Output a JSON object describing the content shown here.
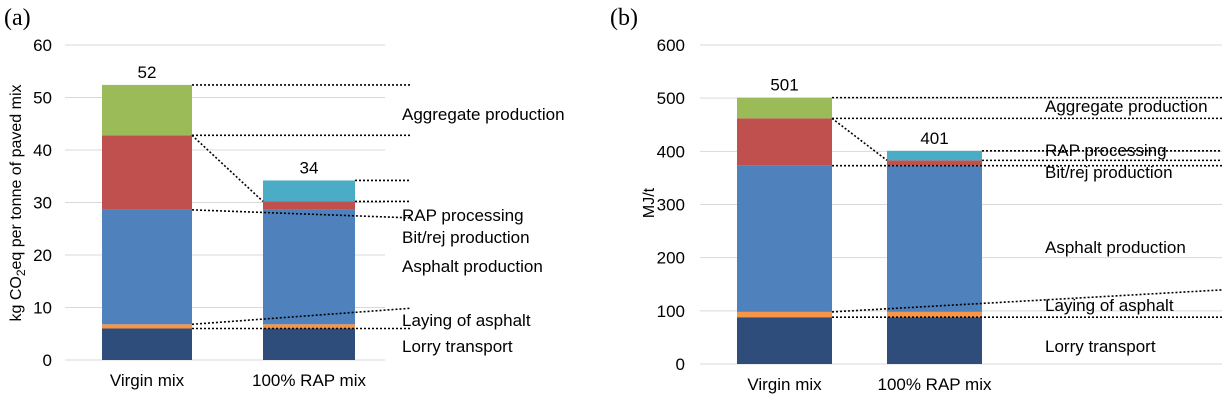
{
  "chart_data": [
    {
      "panel": "(a)",
      "type": "bar",
      "stacked": true,
      "ylabel": "kg CO2eq per tonne of paved mix",
      "ylim": [
        0,
        60
      ],
      "yticks": [
        0,
        10,
        20,
        30,
        40,
        50,
        60
      ],
      "grid": true,
      "categories": [
        "Virgin mix",
        "100% RAP mix"
      ],
      "totals": [
        "52",
        "34"
      ],
      "series": [
        {
          "name": "Lorry transport",
          "color": "#2e4d7a",
          "values": [
            6.0,
            6.0
          ]
        },
        {
          "name": "Laying of asphalt",
          "color": "#f79646",
          "values": [
            0.8,
            0.8
          ]
        },
        {
          "name": "Asphalt production",
          "color": "#4f81bd",
          "values": [
            21.8,
            21.8
          ]
        },
        {
          "name": "Bit/rej production",
          "color": "#c0504d",
          "values": [
            14.2,
            1.6
          ]
        },
        {
          "name": "RAP processing",
          "color": "#4bacc6",
          "values": [
            0,
            4.0
          ]
        },
        {
          "name": "Aggregate production",
          "color": "#9bbb59",
          "values": [
            9.6,
            0
          ]
        }
      ],
      "annotations": [
        "Aggregate production",
        "RAP processing",
        "Bit/rej production",
        "Asphalt production",
        "Laying of asphalt",
        "Lorry transport"
      ]
    },
    {
      "panel": "(b)",
      "type": "bar",
      "stacked": true,
      "ylabel": "MJ/t",
      "ylim": [
        0,
        600
      ],
      "yticks": [
        0,
        100,
        200,
        300,
        400,
        500,
        600
      ],
      "grid": true,
      "categories": [
        "Virgin mix",
        "100% RAP mix"
      ],
      "totals": [
        "501",
        "401"
      ],
      "series": [
        {
          "name": "Lorry transport",
          "color": "#2e4d7a",
          "values": [
            88,
            88
          ]
        },
        {
          "name": "Laying of asphalt",
          "color": "#f79646",
          "values": [
            10,
            10
          ]
        },
        {
          "name": "Asphalt production",
          "color": "#4f81bd",
          "values": [
            275,
            275
          ]
        },
        {
          "name": "Bit/rej production",
          "color": "#c0504d",
          "values": [
            89,
            10
          ]
        },
        {
          "name": "RAP processing",
          "color": "#4bacc6",
          "values": [
            0,
            18
          ]
        },
        {
          "name": "Aggregate production",
          "color": "#9bbb59",
          "values": [
            39,
            0
          ]
        }
      ],
      "annotations": [
        "Aggregate production",
        "RAP processing",
        "Bit/rej production",
        "Asphalt production",
        "Laying of asphalt",
        "Lorry transport"
      ]
    }
  ]
}
